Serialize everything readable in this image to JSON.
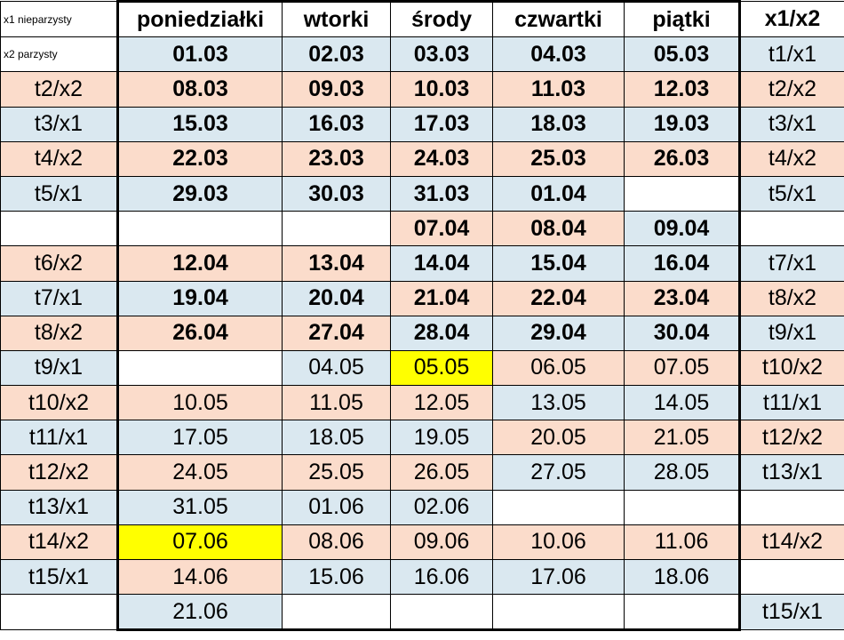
{
  "legend": {
    "x1": "x1 nieparzysty",
    "x2": "x2 parzysty"
  },
  "headers": [
    "poniedziałki",
    "wtorki",
    "środy",
    "czwartki",
    "piątki",
    "x1/x2"
  ],
  "colors": {
    "blue": "#dae8f0",
    "peach": "#fbdccb",
    "highlight": "#ffff00",
    "white": "#ffffff"
  },
  "rows": [
    {
      "week": "",
      "dates": [
        "01.03",
        "02.03",
        "03.03",
        "04.03",
        "05.03"
      ],
      "right": "t1/x1",
      "bold": true,
      "weekBg": "white",
      "bgs": [
        "blue",
        "blue",
        "blue",
        "blue",
        "blue"
      ],
      "rightBg": "blue"
    },
    {
      "week": "t2/x2",
      "dates": [
        "08.03",
        "09.03",
        "10.03",
        "11.03",
        "12.03"
      ],
      "right": "t2/x2",
      "bold": true,
      "weekBg": "peach",
      "bgs": [
        "peach",
        "peach",
        "peach",
        "peach",
        "peach"
      ],
      "rightBg": "peach"
    },
    {
      "week": "t3/x1",
      "dates": [
        "15.03",
        "16.03",
        "17.03",
        "18.03",
        "19.03"
      ],
      "right": "t3/x1",
      "bold": true,
      "weekBg": "blue",
      "bgs": [
        "blue",
        "blue",
        "blue",
        "blue",
        "blue"
      ],
      "rightBg": "blue"
    },
    {
      "week": "t4/x2",
      "dates": [
        "22.03",
        "23.03",
        "24.03",
        "25.03",
        "26.03"
      ],
      "right": "t4/x2",
      "bold": true,
      "weekBg": "peach",
      "bgs": [
        "peach",
        "peach",
        "peach",
        "peach",
        "peach"
      ],
      "rightBg": "peach"
    },
    {
      "week": "t5/x1",
      "dates": [
        "29.03",
        "30.03",
        "31.03",
        "01.04",
        ""
      ],
      "right": "t5/x1",
      "bold": true,
      "weekBg": "blue",
      "bgs": [
        "blue",
        "blue",
        "blue",
        "blue",
        "white"
      ],
      "rightBg": "blue"
    },
    {
      "week": "",
      "dates": [
        "",
        "",
        "07.04",
        "08.04",
        "09.04"
      ],
      "right": "",
      "bold": true,
      "weekBg": "white",
      "bgs": [
        "white",
        "white",
        "peach",
        "peach",
        "blue"
      ],
      "rightBg": "white"
    },
    {
      "week": "t6/x2",
      "dates": [
        "12.04",
        "13.04",
        "14.04",
        "15.04",
        "16.04"
      ],
      "right": "t7/x1",
      "bold": true,
      "weekBg": "peach",
      "bgs": [
        "peach",
        "peach",
        "blue",
        "blue",
        "blue"
      ],
      "rightBg": "blue"
    },
    {
      "week": "t7/x1",
      "dates": [
        "19.04",
        "20.04",
        "21.04",
        "22.04",
        "23.04"
      ],
      "right": "t8/x2",
      "bold": true,
      "weekBg": "blue",
      "bgs": [
        "blue",
        "blue",
        "peach",
        "peach",
        "peach"
      ],
      "rightBg": "peach"
    },
    {
      "week": "t8/x2",
      "dates": [
        "26.04",
        "27.04",
        "28.04",
        "29.04",
        "30.04"
      ],
      "right": "t9/x1",
      "bold": true,
      "weekBg": "peach",
      "bgs": [
        "peach",
        "peach",
        "blue",
        "blue",
        "blue"
      ],
      "rightBg": "blue"
    },
    {
      "week": "t9/x1",
      "dates": [
        "",
        "04.05",
        "05.05",
        "06.05",
        "07.05"
      ],
      "right": "t10/x2",
      "bold": false,
      "weekBg": "blue",
      "bgs": [
        "white",
        "blue",
        "yellow",
        "peach",
        "peach"
      ],
      "rightBg": "peach"
    },
    {
      "week": "t10/x2",
      "dates": [
        "10.05",
        "11.05",
        "12.05",
        "13.05",
        "14.05"
      ],
      "right": "t11/x1",
      "bold": false,
      "weekBg": "peach",
      "bgs": [
        "peach",
        "peach",
        "peach",
        "blue",
        "blue"
      ],
      "rightBg": "blue"
    },
    {
      "week": "t11/x1",
      "dates": [
        "17.05",
        "18.05",
        "19.05",
        "20.05",
        "21.05"
      ],
      "right": "t12/x2",
      "bold": false,
      "weekBg": "blue",
      "bgs": [
        "blue",
        "blue",
        "blue",
        "peach",
        "peach"
      ],
      "rightBg": "peach"
    },
    {
      "week": "t12/x2",
      "dates": [
        "24.05",
        "25.05",
        "26.05",
        "27.05",
        "28.05"
      ],
      "right": "t13/x1",
      "bold": false,
      "weekBg": "peach",
      "bgs": [
        "peach",
        "peach",
        "peach",
        "blue",
        "blue"
      ],
      "rightBg": "blue"
    },
    {
      "week": "t13/x1",
      "dates": [
        "31.05",
        "01.06",
        "02.06",
        "",
        ""
      ],
      "right": "",
      "bold": false,
      "weekBg": "blue",
      "bgs": [
        "blue",
        "blue",
        "blue",
        "white",
        "white"
      ],
      "rightBg": "white"
    },
    {
      "week": "t14/x2",
      "dates": [
        "07.06",
        "08.06",
        "09.06",
        "10.06",
        "11.06"
      ],
      "right": "t14/x2",
      "bold": false,
      "weekBg": "peach",
      "bgs": [
        "yellow",
        "peach",
        "peach",
        "peach",
        "peach"
      ],
      "rightBg": "peach"
    },
    {
      "week": "t15/x1",
      "dates": [
        "14.06",
        "15.06",
        "16.06",
        "17.06",
        "18.06"
      ],
      "right": "",
      "bold": false,
      "weekBg": "blue",
      "bgs": [
        "peach",
        "blue",
        "blue",
        "blue",
        "blue"
      ],
      "rightBg": "white"
    },
    {
      "week": "",
      "dates": [
        "21.06",
        "",
        "",
        "",
        ""
      ],
      "right": "t15/x1",
      "bold": false,
      "weekBg": "white",
      "bgs": [
        "blue",
        "white",
        "white",
        "white",
        "white"
      ],
      "rightBg": "blue"
    }
  ]
}
